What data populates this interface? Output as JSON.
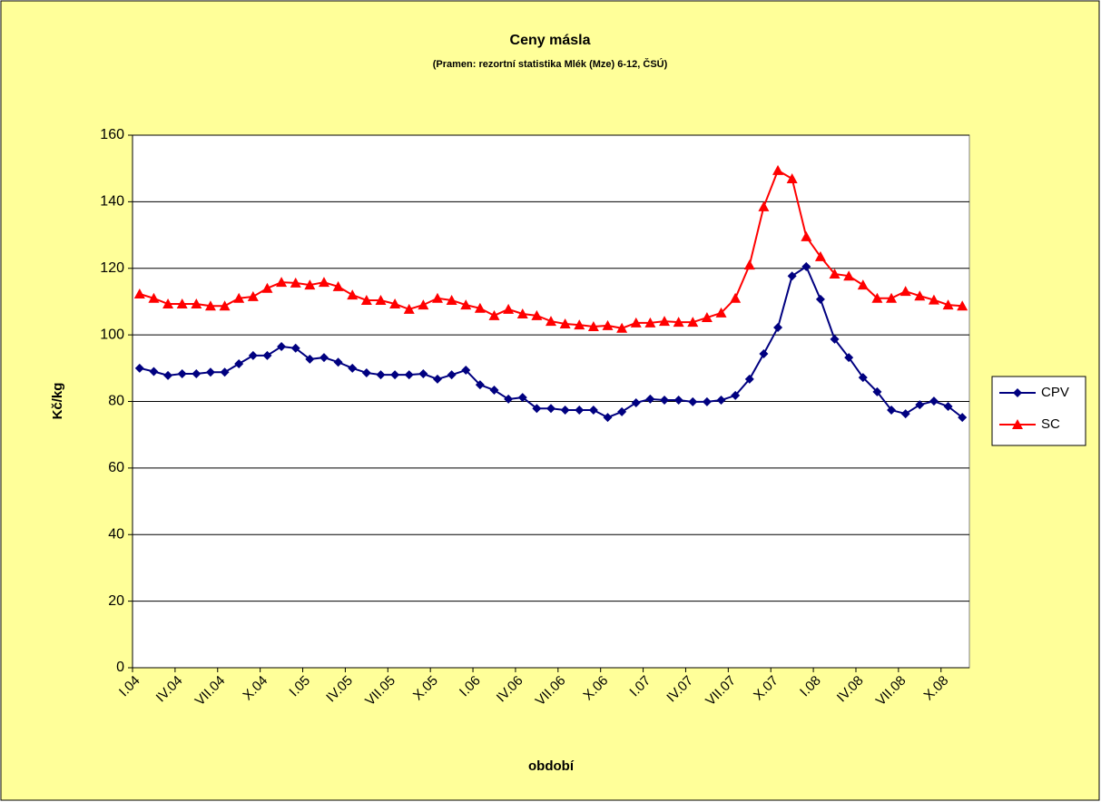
{
  "chart_data": {
    "type": "line",
    "title": "Ceny másla",
    "subtitle": "(Pramen: rezortní statistika Mlék (Mze) 6-12, ČSÚ)",
    "x_label": "období",
    "y_label": "Kč/kg",
    "categories": [
      "I.04",
      null,
      null,
      "IV.04",
      null,
      null,
      "VII.04",
      null,
      null,
      "X.04",
      null,
      null,
      "I.05",
      null,
      null,
      "IV.05",
      null,
      null,
      "VII.05",
      null,
      null,
      "X.05",
      null,
      null,
      "I.06",
      null,
      null,
      "IV.06",
      null,
      null,
      "VII.06",
      null,
      null,
      "X.06",
      null,
      null,
      "I.07",
      null,
      null,
      "IV.07",
      null,
      null,
      "VII.07",
      null,
      null,
      "X.07",
      null,
      null,
      "I.08",
      null,
      null,
      "IV.08",
      null,
      null,
      "VII.08",
      null,
      null,
      "X.08",
      null
    ],
    "series": [
      {
        "name": "CPV",
        "color": "#000080",
        "marker": "diamond",
        "values": [
          90,
          89,
          87.8,
          88.3,
          88.3,
          88.8,
          88.8,
          91.3,
          93.8,
          93.8,
          96.5,
          96,
          92.7,
          93.2,
          91.8,
          90,
          88.6,
          88,
          88,
          88,
          88.3,
          86.7,
          88,
          89.4,
          85,
          83.4,
          80.7,
          81.2,
          77.9,
          77.9,
          77.4,
          77.4,
          77.4,
          75.2,
          76.9,
          79.6,
          80.7,
          80.4,
          80.4,
          79.9,
          79.9,
          80.4,
          81.8,
          86.7,
          94.3,
          102.2,
          117.7,
          120.5,
          110.7,
          98.7,
          93.2,
          87.2,
          82.9,
          77.4,
          76.3,
          79,
          80.1,
          78.5,
          75.2
        ]
      },
      {
        "name": "SC",
        "color": "#ff0000",
        "marker": "triangle",
        "values": [
          112.3,
          111,
          109.3,
          109.3,
          109.3,
          108.7,
          108.7,
          111,
          111.5,
          114,
          115.8,
          115.6,
          115,
          115.8,
          114.5,
          112,
          110.4,
          110.4,
          109.3,
          107.7,
          109,
          111,
          110.4,
          109,
          108,
          105.8,
          107.7,
          106.3,
          105.8,
          104.1,
          103.3,
          103,
          102.5,
          102.8,
          102,
          103.6,
          103.6,
          104.1,
          103.8,
          103.8,
          105.2,
          106.6,
          111,
          121,
          138.5,
          149.4,
          146.9,
          129.5,
          123.5,
          118.3,
          117.7,
          115,
          111,
          111,
          113.1,
          111.7,
          110.5,
          109,
          108.7
        ]
      }
    ],
    "ylim": [
      0,
      160
    ],
    "yticks": [
      0,
      20,
      40,
      60,
      80,
      100,
      120,
      140,
      160
    ],
    "grid": true,
    "legend": "right"
  }
}
